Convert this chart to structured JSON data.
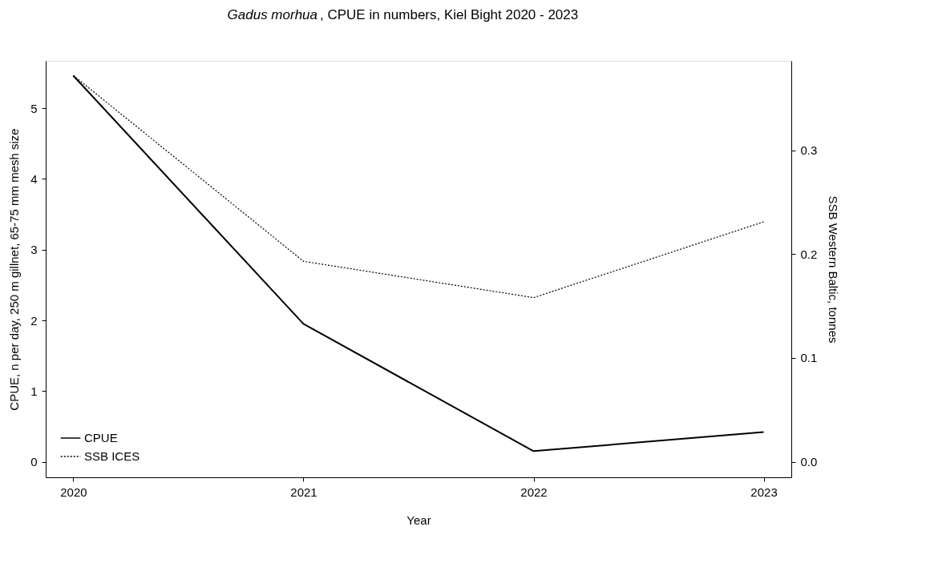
{
  "chart_data": {
    "type": "line",
    "title": "Gadus morhua , CPUE in numbers, Kiel Bight 2020 - 2023",
    "xlabel": "Year",
    "ylabel": "CPUE, n per day, 250 m gillnet, 65-75 mm mesh size",
    "y2label": "SSB Western Baltic, tonnes",
    "x": [
      2020,
      2021,
      2022,
      2023
    ],
    "series": [
      {
        "name": "CPUE",
        "color": "#000000",
        "values": [
          5.46,
          1.95,
          0.15,
          0.42
        ],
        "line_style": "solid"
      },
      {
        "name": "SSB ICES",
        "color": "#000000",
        "values": [
          0.372,
          0.193,
          0.158,
          0.231
        ],
        "line_style": "dotted",
        "axis": "y2"
      }
    ],
    "xlim": [
      2019.88,
      2023.12
    ],
    "xticks": [
      2020,
      2021,
      2022,
      2023
    ],
    "ylim": [
      -0.22,
      5.67
    ],
    "yticks": [
      0,
      1,
      2,
      3,
      4,
      5
    ],
    "y2lim": [
      -0.015,
      0.386
    ],
    "y2ticks": [
      {
        "value": 0,
        "label": "0.0"
      },
      0.1,
      0.2,
      0.3
    ],
    "legend": "bottom left"
  }
}
